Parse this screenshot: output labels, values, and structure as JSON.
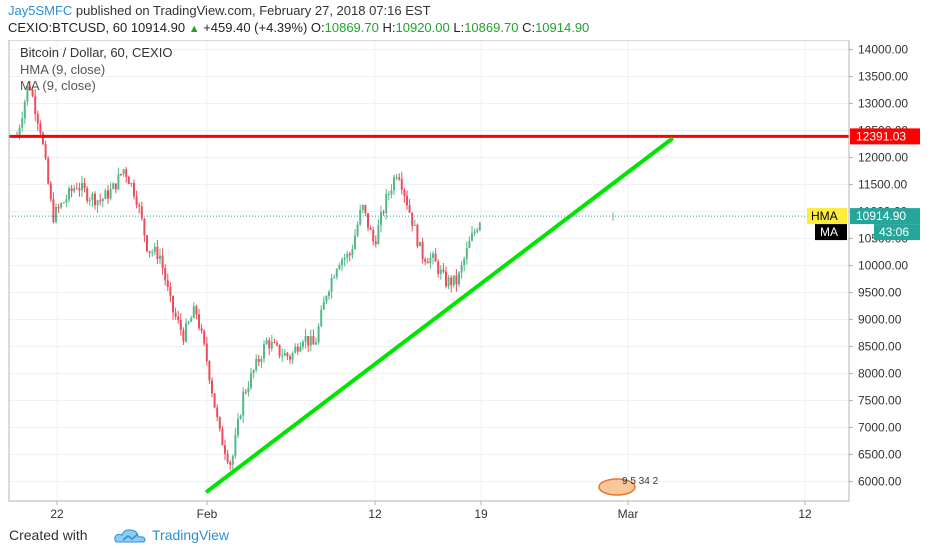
{
  "header": {
    "author": "Jay5SMFC",
    "published_text": "published on TradingView.com, February 27, 2018 07:16 EST",
    "symbol_interval": "CEXIO:BTCUSD, 60",
    "last_price": "10914.90",
    "change_arrow": "▲",
    "change": "+459.40 (+4.39%)",
    "open_label": "O:",
    "open": "10869.70",
    "high_label": "H:",
    "high": "10920.00",
    "low_label": "L:",
    "low": "10869.70",
    "close_label": "C:",
    "close": "10914.90"
  },
  "legend": {
    "title": "Bitcoin / Dollar, 60, CEXIO",
    "indicator1": "HMA (9, close)",
    "indicator2": "MA (9, close)"
  },
  "footer": {
    "created_with": "Created with",
    "brand": "TradingView"
  },
  "colors": {
    "up": "#53b987",
    "down": "#eb4d5c",
    "resistance": "#ff0000",
    "trendline": "#00e500",
    "price_line": "#26a69a",
    "hma_badge": "#ffeb3b"
  },
  "chart_data": {
    "type": "candlestick",
    "symbol": "BTCUSD",
    "exchange": "CEXIO",
    "interval_minutes": 60,
    "title": "Bitcoin / Dollar, 60, CEXIO",
    "xlabel": "",
    "ylabel": "",
    "x_tick_labels": [
      "22",
      "Feb",
      "12",
      "19",
      "Mar",
      "12"
    ],
    "y_ticks": [
      6000,
      6500,
      7000,
      7500,
      8000,
      8500,
      9000,
      9500,
      10000,
      10500,
      11000,
      11500,
      12000,
      12500,
      13000,
      13500,
      14000
    ],
    "y_tick_labels": [
      "6000.00",
      "6500.00",
      "7000.00",
      "7500.00",
      "8000.00",
      "8500.00",
      "9000.00",
      "9500.00",
      "10000.00",
      "10500.00",
      "11000.00",
      "11500.00",
      "12000.00",
      "12500.00",
      "13000.00",
      "13500.00",
      "14000.00"
    ],
    "ylim": [
      5800,
      14200
    ],
    "x_range_days": [
      "2018-01-19",
      "2018-03-16"
    ],
    "grid": true,
    "price_path": [
      {
        "date": "2018-01-19",
        "value": 12400
      },
      {
        "date": "2018-01-20",
        "value": 13400
      },
      {
        "date": "2018-01-21",
        "value": 12500
      },
      {
        "date": "2018-01-22",
        "value": 10900
      },
      {
        "date": "2018-01-23",
        "value": 11200
      },
      {
        "date": "2018-01-24",
        "value": 11500
      },
      {
        "date": "2018-01-25",
        "value": 11300
      },
      {
        "date": "2018-01-26",
        "value": 11200
      },
      {
        "date": "2018-01-27",
        "value": 11400
      },
      {
        "date": "2018-01-28",
        "value": 11800
      },
      {
        "date": "2018-01-29",
        "value": 11300
      },
      {
        "date": "2018-01-30",
        "value": 10300
      },
      {
        "date": "2018-01-31",
        "value": 10200
      },
      {
        "date": "2018-02-01",
        "value": 9200
      },
      {
        "date": "2018-02-02",
        "value": 8700
      },
      {
        "date": "2018-02-03",
        "value": 9200
      },
      {
        "date": "2018-02-04",
        "value": 8200
      },
      {
        "date": "2018-02-05",
        "value": 6900
      },
      {
        "date": "2018-02-06",
        "value": 6300
      },
      {
        "date": "2018-02-07",
        "value": 7600
      },
      {
        "date": "2018-02-08",
        "value": 8100
      },
      {
        "date": "2018-02-09",
        "value": 8600
      },
      {
        "date": "2018-02-10",
        "value": 8400
      },
      {
        "date": "2018-02-11",
        "value": 8300
      },
      {
        "date": "2018-02-12",
        "value": 8700
      },
      {
        "date": "2018-02-13",
        "value": 8500
      },
      {
        "date": "2018-02-14",
        "value": 9500
      },
      {
        "date": "2018-02-15",
        "value": 10100
      },
      {
        "date": "2018-02-16",
        "value": 10200
      },
      {
        "date": "2018-02-17",
        "value": 11100
      },
      {
        "date": "2018-02-18",
        "value": 10400
      },
      {
        "date": "2018-02-19",
        "value": 11200
      },
      {
        "date": "2018-02-20",
        "value": 11800
      },
      {
        "date": "2018-02-21",
        "value": 11000
      },
      {
        "date": "2018-02-22",
        "value": 10200
      },
      {
        "date": "2018-02-23",
        "value": 10100
      },
      {
        "date": "2018-02-24",
        "value": 9700
      },
      {
        "date": "2018-02-25",
        "value": 9700
      },
      {
        "date": "2018-02-26",
        "value": 10400
      },
      {
        "date": "2018-02-27",
        "value": 10914.9
      }
    ],
    "horizontal_lines": [
      {
        "value": 12391.03,
        "label": "12391.03",
        "color": "#ff0000"
      }
    ],
    "trendlines": [
      {
        "start": {
          "date": "2018-02-04",
          "value": 5820
        },
        "end": {
          "date": "2018-03-15",
          "value": 12340
        },
        "color": "#00e500"
      }
    ],
    "current_price": {
      "value": 10914.9,
      "label": "10914.90",
      "countdown": "43:06"
    },
    "indicator_badges": [
      "HMA",
      "MA"
    ],
    "events_label": "9 5 34 2"
  }
}
